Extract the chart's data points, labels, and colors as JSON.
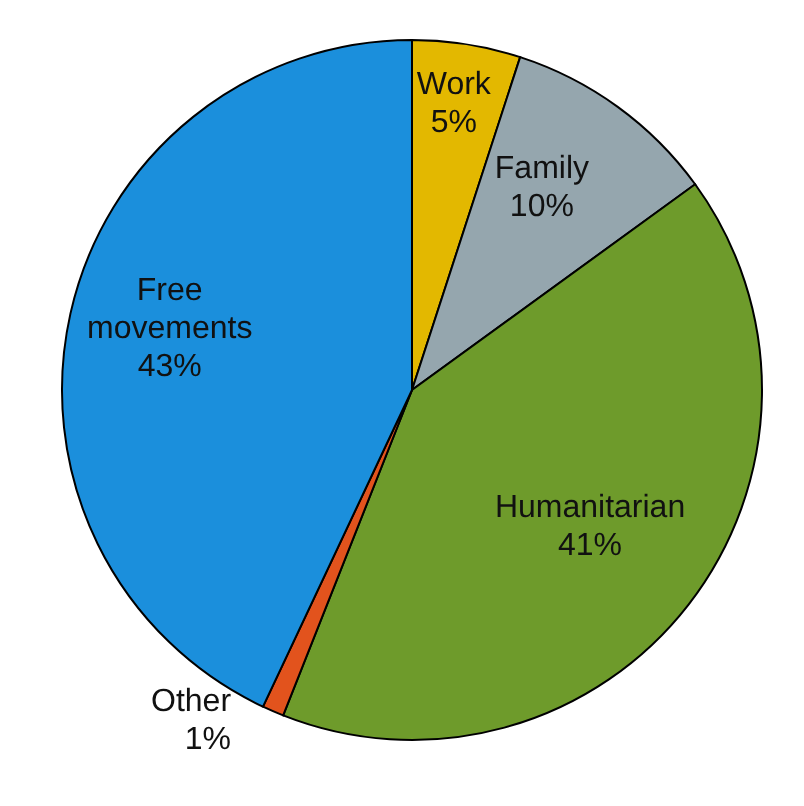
{
  "chart_data": {
    "type": "pie",
    "categories": [
      "Work",
      "Family",
      "Humanitarian",
      "Other",
      "Free movements"
    ],
    "values": [
      5,
      10,
      41,
      1,
      43
    ],
    "colors": [
      "#e3b800",
      "#95a6ae",
      "#6e9b2b",
      "#e2531d",
      "#1b8fdc"
    ],
    "value_labels": [
      "5%",
      "10%",
      "41%",
      "1%",
      "43%"
    ]
  }
}
